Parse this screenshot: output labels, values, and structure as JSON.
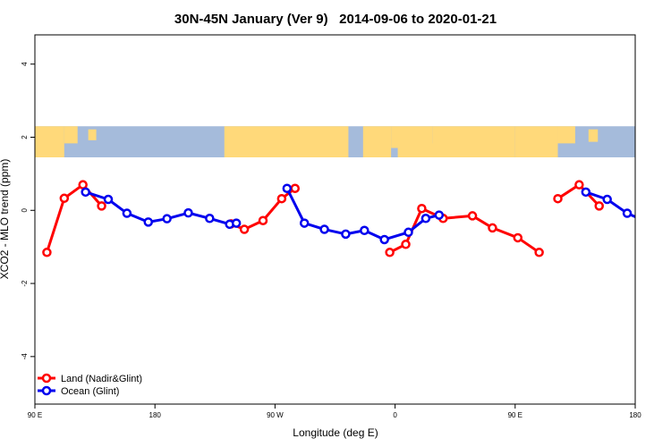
{
  "chart_data": {
    "type": "line",
    "title": "30N-45N January (Ver 9)   2014-09-06 to 2020-01-21",
    "xlabel": "Longitude (deg E)",
    "ylabel": "XCO2 - MLO trend (ppm)",
    "x_ticks": [
      {
        "value": 90,
        "label": "90 E"
      },
      {
        "value": 180,
        "label": "180"
      },
      {
        "value": 270,
        "label": "90 W"
      },
      {
        "value": 360,
        "label": "0"
      },
      {
        "value": 450,
        "label": "90 E"
      },
      {
        "value": 540,
        "label": "180"
      }
    ],
    "y_ticks": [
      {
        "value": -4,
        "label": "-4"
      },
      {
        "value": -2,
        "label": "-2"
      },
      {
        "value": 0,
        "label": "0"
      },
      {
        "value": 2,
        "label": "2"
      },
      {
        "value": 4,
        "label": "4"
      }
    ],
    "xlim": [
      90,
      540
    ],
    "ylim": [
      -5.3,
      4.8
    ],
    "map_band": {
      "y_range": [
        1.45,
        2.3
      ],
      "ocean_color": "#a5bbdb",
      "land_color": "#ffd97a"
    },
    "legend_position": "bottom-left",
    "series": [
      {
        "name": "Land (Nadir&Glint)",
        "color": "#ff0000",
        "segments": [
          {
            "x": [
              99,
              112,
              126,
              140
            ],
            "y": [
              -1.15,
              0.33,
              0.7,
              0.12
            ]
          },
          {
            "x": [
              237,
              247,
              261,
              275,
              285
            ],
            "y": [
              -0.37,
              -0.52,
              -0.28,
              0.32,
              0.6
            ]
          },
          {
            "x": [
              356,
              368,
              380,
              396,
              418,
              433,
              452,
              468
            ],
            "y": [
              -1.15,
              -0.93,
              0.05,
              -0.22,
              -0.15,
              -0.48,
              -0.75,
              -1.15
            ]
          },
          {
            "x": [
              482,
              498,
              513
            ],
            "y": [
              0.32,
              0.7,
              0.12
            ]
          }
        ]
      },
      {
        "name": "Ocean (Glint)",
        "color": "#0000ee",
        "segments": [
          {
            "x": [
              128,
              145,
              159,
              175,
              189,
              205,
              221,
              236,
              241
            ],
            "y": [
              0.5,
              0.3,
              -0.08,
              -0.32,
              -0.23,
              -0.07,
              -0.22,
              -0.38,
              -0.35
            ]
          },
          {
            "x": [
              279,
              292,
              307,
              323,
              337,
              352,
              370,
              383,
              393
            ],
            "y": [
              0.6,
              -0.35,
              -0.52,
              -0.65,
              -0.55,
              -0.8,
              -0.6,
              -0.22,
              -0.13
            ]
          },
          {
            "x": [
              503,
              519,
              534,
              549
            ],
            "y": [
              0.5,
              0.3,
              -0.08,
              -0.32
            ]
          }
        ]
      }
    ]
  }
}
